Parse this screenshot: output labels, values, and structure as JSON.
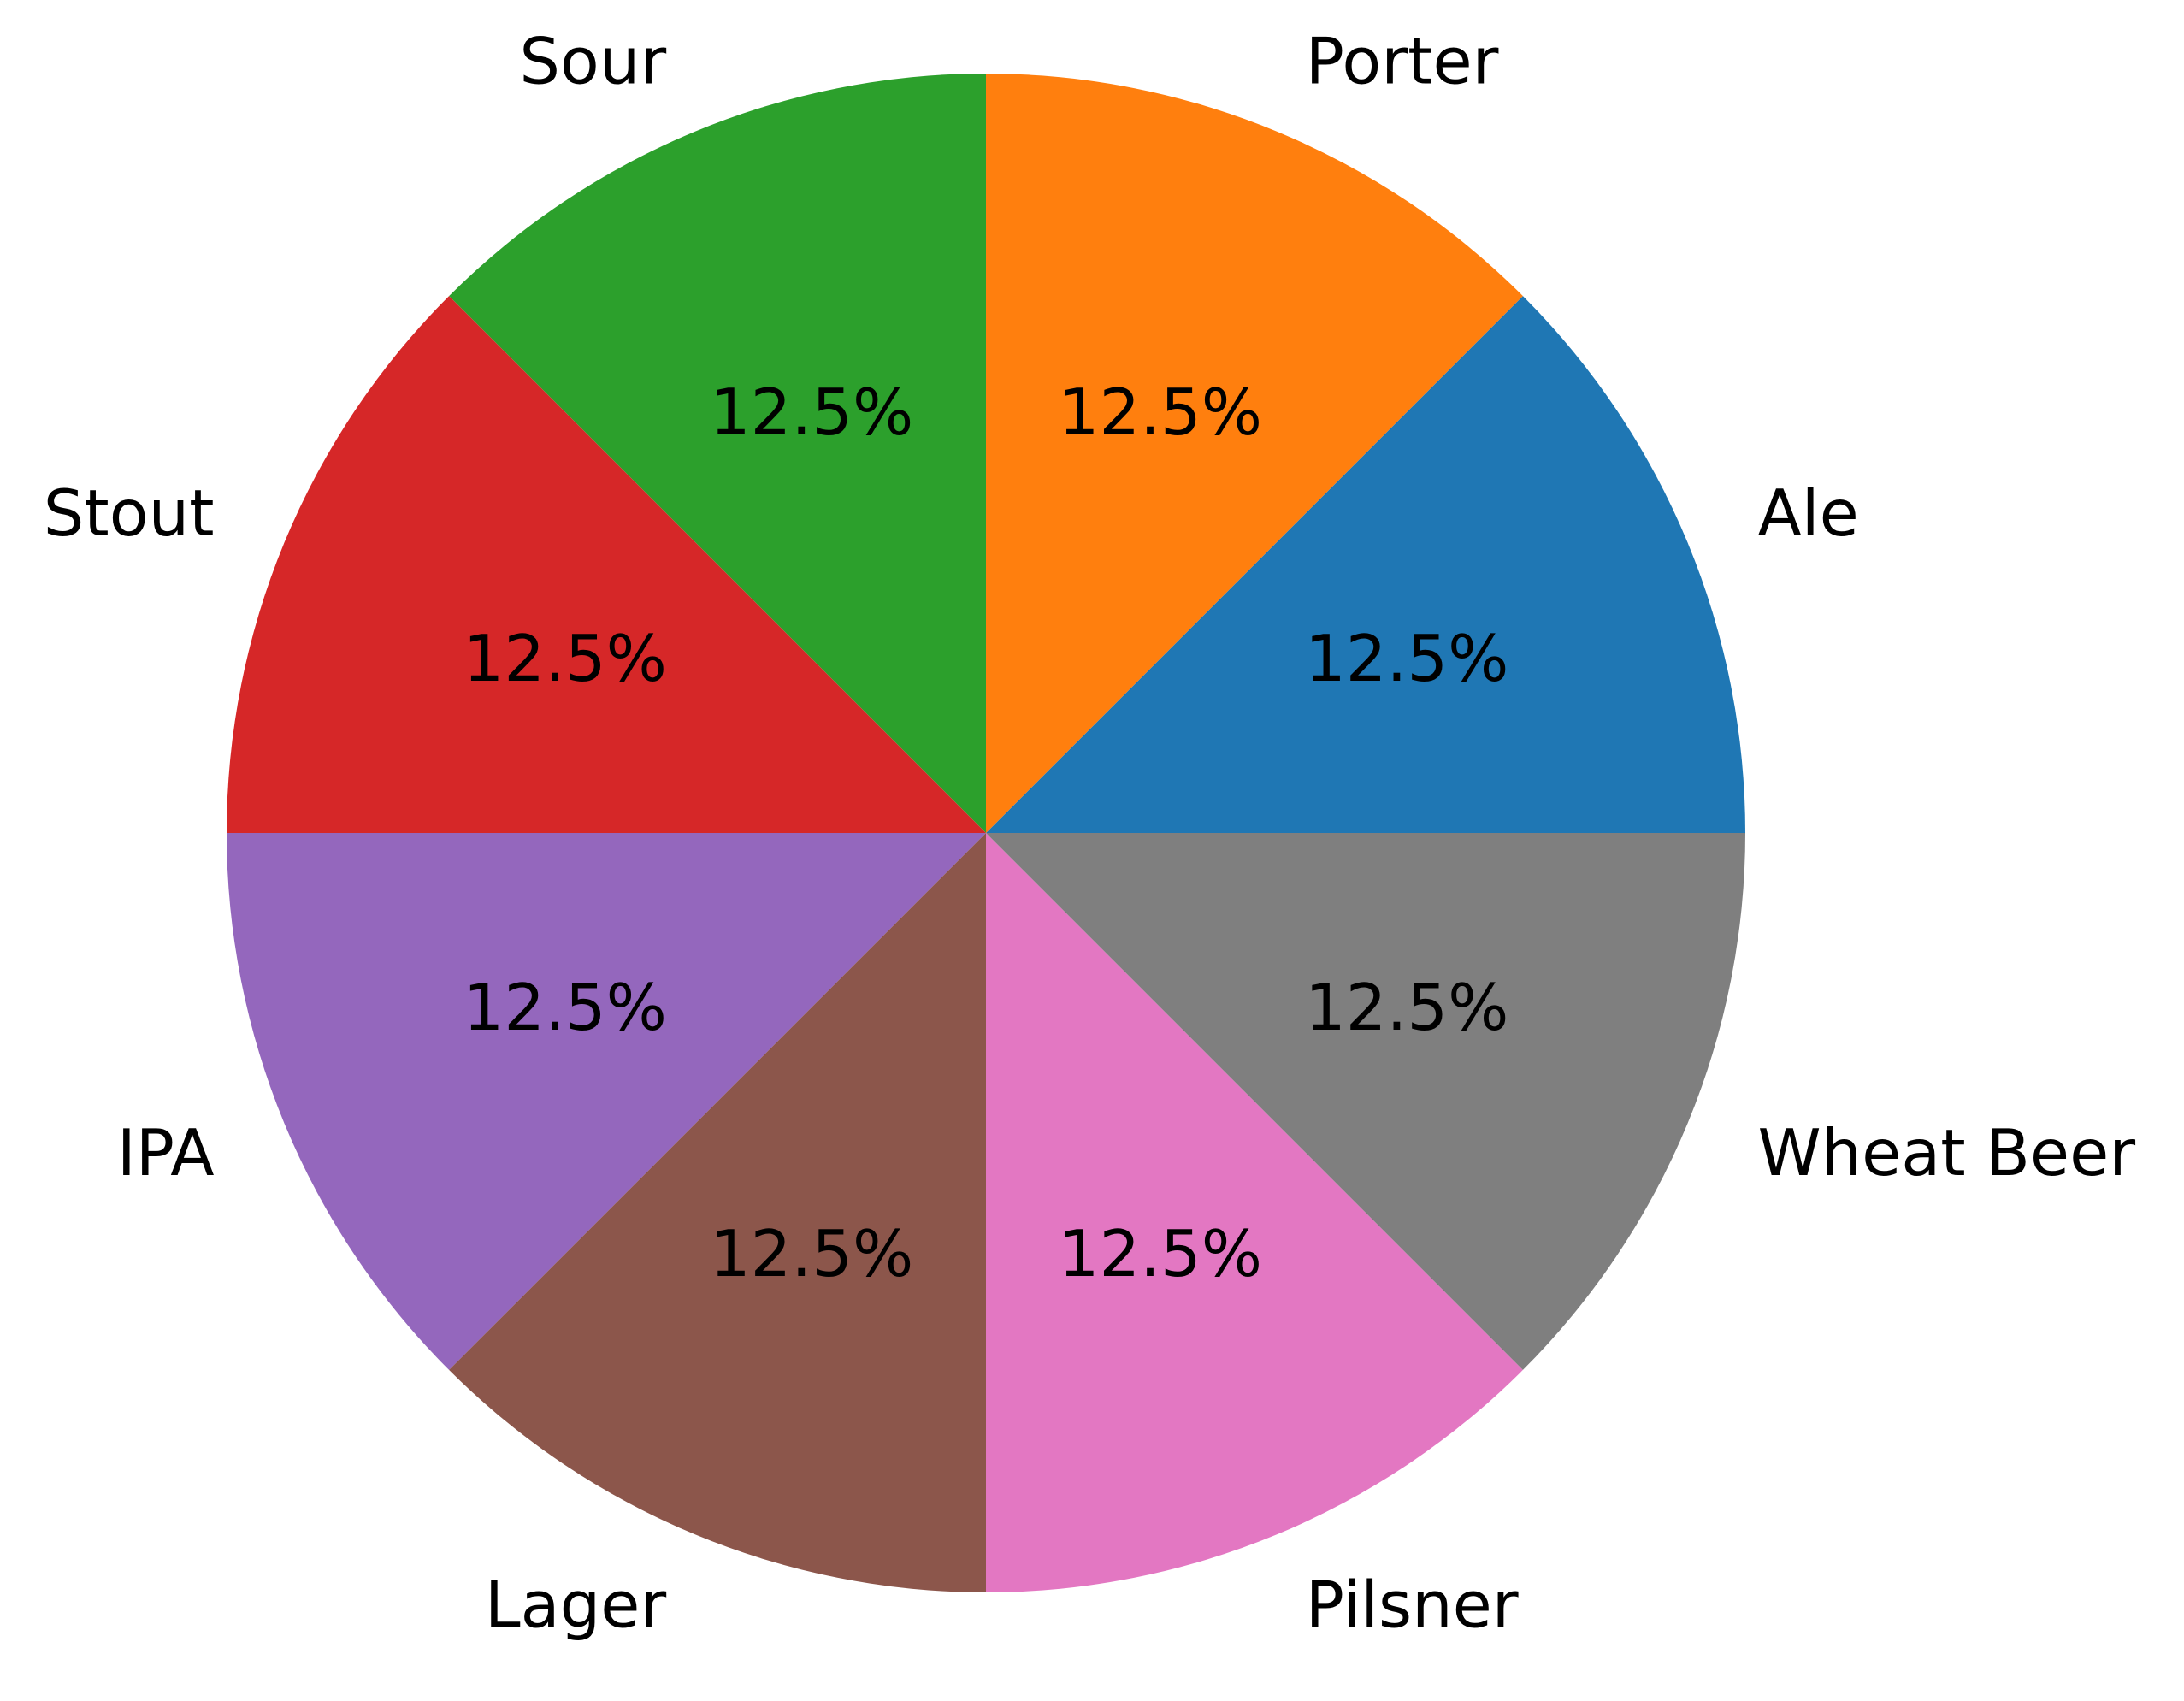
{
  "chart_data": {
    "type": "pie",
    "title": "",
    "start_angle_deg": 90,
    "direction": "clockwise-from-top-counterclockwise-order",
    "slices": [
      {
        "label": "Ale",
        "value": 12.5,
        "pct_label": "12.5%",
        "color": "#1f77b4"
      },
      {
        "label": "Porter",
        "value": 12.5,
        "pct_label": "12.5%",
        "color": "#ff7f0e"
      },
      {
        "label": "Sour",
        "value": 12.5,
        "pct_label": "12.5%",
        "color": "#2ca02c"
      },
      {
        "label": "Stout",
        "value": 12.5,
        "pct_label": "12.5%",
        "color": "#d62728"
      },
      {
        "label": "IPA",
        "value": 12.5,
        "pct_label": "12.5%",
        "color": "#9467bd"
      },
      {
        "label": "Lager",
        "value": 12.5,
        "pct_label": "12.5%",
        "color": "#8c564b"
      },
      {
        "label": "Pilsner",
        "value": 12.5,
        "pct_label": "12.5%",
        "color": "#e377c2"
      },
      {
        "label": "Wheat Beer",
        "value": 12.5,
        "pct_label": "12.5%",
        "color": "#7f7f7f"
      }
    ]
  }
}
